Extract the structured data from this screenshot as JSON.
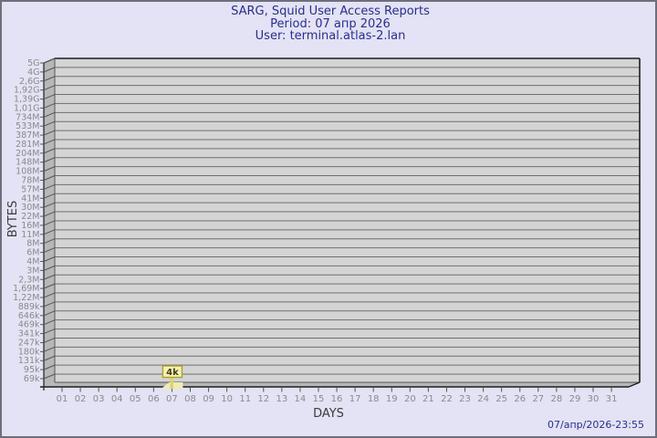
{
  "header": {
    "title": "SARG, Squid User Access Reports",
    "period": "Period: 07 апр 2026",
    "user": "User: terminal.atlas-2.lan"
  },
  "footer": {
    "timestamp": "07/апр/2026-23:55"
  },
  "colors": {
    "background": "#e3e3f5",
    "frame_border": "#6f6f7a",
    "title_text": "#2b2b9e",
    "plot_panel": "#d4d4d4",
    "plot_side": "#b7b7b7",
    "grid_line": "#6f6f6f",
    "edge_line": "#1d1d1d",
    "minor_edge": "#555555",
    "tick_text": "#8a8a8a",
    "axis_title_text": "#3a3a3a",
    "bar_fill": "#efeab6",
    "bar_stem": "#e0d268",
    "label_box_fill": "#f5f0b5",
    "label_box_border": "#a9a227",
    "label_text": "#3f3f12"
  },
  "chart_data": {
    "type": "bar",
    "title": "SARG, Squid User Access Reports",
    "subtitle": "Period: 07 апр 2026 / User: terminal.atlas-2.lan",
    "xlabel": "DAYS",
    "ylabel": "BYTES",
    "scale": "log",
    "grid": "horizontal",
    "legend": "none",
    "categories": [
      "01",
      "02",
      "03",
      "04",
      "05",
      "06",
      "07",
      "08",
      "09",
      "10",
      "11",
      "12",
      "13",
      "14",
      "15",
      "16",
      "17",
      "18",
      "19",
      "20",
      "21",
      "22",
      "23",
      "24",
      "25",
      "26",
      "27",
      "28",
      "29",
      "30",
      "31"
    ],
    "series": [
      {
        "name": "terminal.atlas-2.lan",
        "values": [
          0,
          0,
          0,
          0,
          0,
          0,
          4096,
          0,
          0,
          0,
          0,
          0,
          0,
          0,
          0,
          0,
          0,
          0,
          0,
          0,
          0,
          0,
          0,
          0,
          0,
          0,
          0,
          0,
          0,
          0,
          0
        ]
      }
    ],
    "annotations": [
      {
        "category": "07",
        "label": "4k"
      }
    ],
    "y_ticks": [
      "5G",
      "4G",
      "2,6G",
      "1,92G",
      "1,39G",
      "1,01G",
      "734M",
      "533M",
      "387M",
      "281M",
      "204M",
      "148M",
      "108M",
      "78M",
      "57M",
      "41M",
      "30M",
      "22M",
      "16M",
      "11M",
      "8M",
      "6M",
      "4M",
      "3M",
      "2,3M",
      "1,69M",
      "1,22M",
      "889k",
      "646k",
      "469k",
      "341k",
      "247k",
      "180k",
      "131k",
      "95k",
      "69k"
    ]
  }
}
